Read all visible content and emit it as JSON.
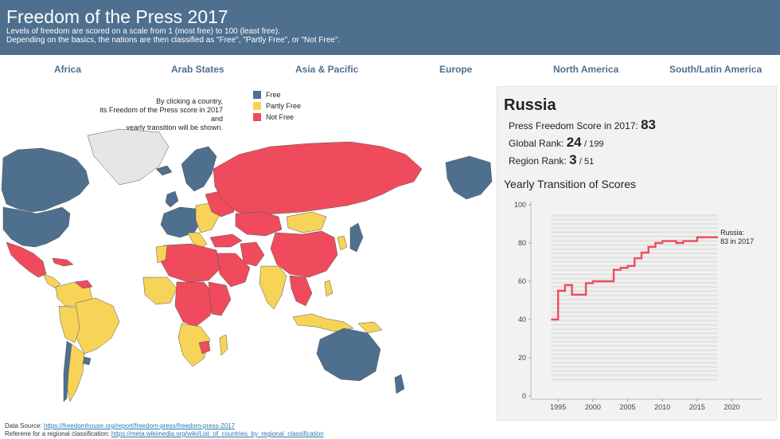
{
  "header": {
    "title": "Freedom of the Press 2017",
    "subtitle_line1": "Levels of freedom are scored on a scale from 1 (most free) to 100 (least free).",
    "subtitle_line2": "Depending on the basics, the nations are then classified as \"Free\", \"Partly Free\", or \"Not Free\"."
  },
  "regions": [
    "Africa",
    "Arab States",
    "Asia & Pacific",
    "Europe",
    "North America",
    "South/Latin America"
  ],
  "map": {
    "instruction_line1": "By clicking a country,",
    "instruction_line2": "its Freedom of the Press score in 2017 and",
    "instruction_line3": "yearly transition will be shown.",
    "legend": [
      {
        "label": "Free",
        "color": "#4f6f8f"
      },
      {
        "label": "Partly Free",
        "color": "#f7d358"
      },
      {
        "label": "Not Free",
        "color": "#ef4b5c"
      }
    ],
    "no_data_color": "#e6e6e6"
  },
  "panel": {
    "country": "Russia",
    "score_label": "Press Freedom Score in 2017:",
    "score_value": "83",
    "global_rank_label": "Global Rank:",
    "global_rank_value": "24",
    "global_rank_total": "/ 199",
    "region_rank_label": "Region Rank:",
    "region_rank_value": "3",
    "region_rank_total": "/ 51",
    "chart_title": "Yearly Transition of Scores"
  },
  "chart_data": {
    "type": "line",
    "title": "Yearly Transition of Scores",
    "xlabel": "",
    "ylabel": "",
    "xlim": [
      1992,
      2022
    ],
    "ylim": [
      0,
      100
    ],
    "xticks": [
      1995,
      2000,
      2005,
      2010,
      2015,
      2020
    ],
    "yticks": [
      0,
      20,
      40,
      60,
      80,
      100
    ],
    "highlight_color": "#ef4b5c",
    "background_color": "#e4e4e4",
    "series": [
      {
        "name": "Russia",
        "x": [
          1994,
          1995,
          1996,
          1997,
          1998,
          1999,
          2000,
          2001,
          2002,
          2003,
          2004,
          2005,
          2006,
          2007,
          2008,
          2009,
          2010,
          2011,
          2012,
          2013,
          2014,
          2015,
          2016,
          2017
        ],
        "values": [
          40,
          55,
          58,
          53,
          53,
          59,
          60,
          60,
          60,
          66,
          67,
          68,
          72,
          75,
          78,
          80,
          81,
          81,
          80,
          81,
          81,
          83,
          83,
          83
        ]
      }
    ],
    "annotation_line1": "Russia:",
    "annotation_line2": "83 in 2017"
  },
  "footer": {
    "source_label": "Data Source:",
    "source_link": "https://freedomhouse.org/report/freedom-press/freedom-press-2017",
    "reference_label": "Referene for a regional classification:",
    "reference_link": "https://meta.wikimedia.org/wiki/List_of_countries_by_regional_classification"
  }
}
